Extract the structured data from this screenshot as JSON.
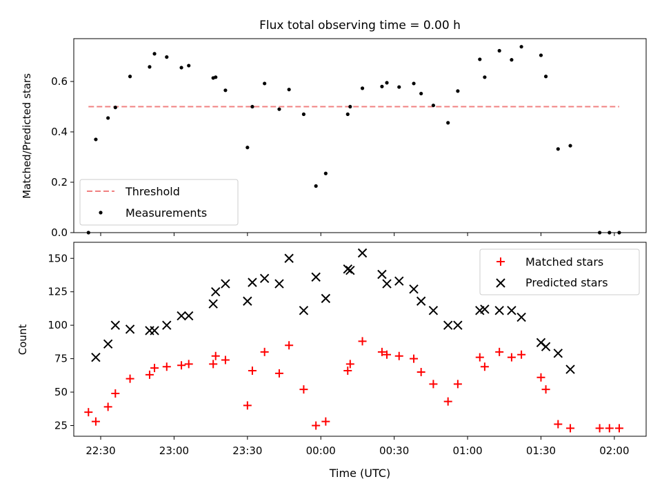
{
  "chart_data": [
    {
      "type": "scatter",
      "title": "Flux total observing time = 0.00 h",
      "xlabel": "",
      "ylabel": "Matched/Predicted stars",
      "ylim": [
        0,
        0.77
      ],
      "xlim": [
        "22:19",
        "02:13"
      ],
      "yticks": [
        "0.0",
        "0.2",
        "0.4",
        "0.6"
      ],
      "grid": false,
      "legend_position": "lower-left",
      "threshold": {
        "name": "Threshold",
        "value": 0.5,
        "x_start": "22:25",
        "x_end": "02:02",
        "color": "#f08080"
      },
      "series": [
        {
          "name": "Measurements",
          "color": "#000000",
          "points": [
            [
              "22:25",
              0.0
            ],
            [
              "22:28",
              0.37
            ],
            [
              "22:33",
              0.455
            ],
            [
              "22:36",
              0.497
            ],
            [
              "22:42",
              0.62
            ],
            [
              "22:50",
              0.658
            ],
            [
              "22:52",
              0.71
            ],
            [
              "22:57",
              0.697
            ],
            [
              "23:03",
              0.655
            ],
            [
              "23:06",
              0.663
            ],
            [
              "23:16",
              0.614
            ],
            [
              "23:17",
              0.617
            ],
            [
              "23:21",
              0.565
            ],
            [
              "23:30",
              0.338
            ],
            [
              "23:32",
              0.5
            ],
            [
              "23:37",
              0.592
            ],
            [
              "23:43",
              0.49
            ],
            [
              "23:47",
              0.568
            ],
            [
              "23:53",
              0.47
            ],
            [
              "23:58",
              0.185
            ],
            [
              "00:02",
              0.235
            ],
            [
              "00:11",
              0.47
            ],
            [
              "00:12",
              0.5
            ],
            [
              "00:17",
              0.573
            ],
            [
              "00:25",
              0.58
            ],
            [
              "00:27",
              0.595
            ],
            [
              "00:32",
              0.578
            ],
            [
              "00:38",
              0.592
            ],
            [
              "00:41",
              0.552
            ],
            [
              "00:46",
              0.505
            ],
            [
              "00:52",
              0.436
            ],
            [
              "00:56",
              0.562
            ],
            [
              "01:05",
              0.688
            ],
            [
              "01:07",
              0.617
            ],
            [
              "01:13",
              0.722
            ],
            [
              "01:18",
              0.686
            ],
            [
              "01:22",
              0.738
            ],
            [
              "01:30",
              0.704
            ],
            [
              "01:32",
              0.62
            ],
            [
              "01:37",
              0.332
            ],
            [
              "01:42",
              0.345
            ],
            [
              "01:54",
              0.0
            ],
            [
              "01:58",
              0.0
            ],
            [
              "02:02",
              0.0
            ]
          ]
        }
      ]
    },
    {
      "type": "scatter",
      "title": "",
      "xlabel": "Time (UTC)",
      "ylabel": "Count",
      "ylim": [
        17,
        162
      ],
      "xlim": [
        "22:19",
        "02:13"
      ],
      "xticks": [
        "22:30",
        "23:00",
        "23:30",
        "00:00",
        "00:30",
        "01:00",
        "01:30",
        "02:00"
      ],
      "yticks": [
        "25",
        "50",
        "75",
        "100",
        "125",
        "150"
      ],
      "grid": false,
      "legend_position": "upper-right",
      "series": [
        {
          "name": "Matched stars",
          "color": "#ff0000",
          "marker": "+",
          "points": [
            [
              "22:25",
              35
            ],
            [
              "22:28",
              28
            ],
            [
              "22:33",
              39
            ],
            [
              "22:36",
              49
            ],
            [
              "22:42",
              60
            ],
            [
              "22:50",
              63
            ],
            [
              "22:52",
              68
            ],
            [
              "22:57",
              69
            ],
            [
              "23:03",
              70
            ],
            [
              "23:06",
              71
            ],
            [
              "23:16",
              71
            ],
            [
              "23:17",
              77
            ],
            [
              "23:21",
              74
            ],
            [
              "23:30",
              40
            ],
            [
              "23:32",
              66
            ],
            [
              "23:37",
              80
            ],
            [
              "23:43",
              64
            ],
            [
              "23:47",
              85
            ],
            [
              "23:53",
              52
            ],
            [
              "23:58",
              25
            ],
            [
              "00:02",
              28
            ],
            [
              "00:11",
              66
            ],
            [
              "00:12",
              71
            ],
            [
              "00:17",
              88
            ],
            [
              "00:25",
              80
            ],
            [
              "00:27",
              78
            ],
            [
              "00:32",
              77
            ],
            [
              "00:38",
              75
            ],
            [
              "00:41",
              65
            ],
            [
              "00:46",
              56
            ],
            [
              "00:52",
              43
            ],
            [
              "00:56",
              56
            ],
            [
              "01:05",
              76
            ],
            [
              "01:07",
              69
            ],
            [
              "01:13",
              80
            ],
            [
              "01:18",
              76
            ],
            [
              "01:22",
              78
            ],
            [
              "01:30",
              61
            ],
            [
              "01:32",
              52
            ],
            [
              "01:37",
              26
            ],
            [
              "01:42",
              23
            ],
            [
              "01:54",
              23
            ],
            [
              "01:58",
              23
            ],
            [
              "02:02",
              23
            ]
          ]
        },
        {
          "name": "Predicted stars",
          "color": "#000000",
          "marker": "x",
          "points": [
            [
              "22:28",
              76
            ],
            [
              "22:33",
              86
            ],
            [
              "22:36",
              100
            ],
            [
              "22:42",
              97
            ],
            [
              "22:50",
              96
            ],
            [
              "22:52",
              96
            ],
            [
              "22:57",
              100
            ],
            [
              "23:03",
              107
            ],
            [
              "23:06",
              107
            ],
            [
              "23:16",
              116
            ],
            [
              "23:17",
              125
            ],
            [
              "23:21",
              131
            ],
            [
              "23:30",
              118
            ],
            [
              "23:32",
              132
            ],
            [
              "23:37",
              135
            ],
            [
              "23:43",
              131
            ],
            [
              "23:47",
              150
            ],
            [
              "23:53",
              111
            ],
            [
              "23:58",
              136
            ],
            [
              "00:02",
              120
            ],
            [
              "00:11",
              142
            ],
            [
              "00:12",
              141
            ],
            [
              "00:17",
              154
            ],
            [
              "00:25",
              138
            ],
            [
              "00:27",
              131
            ],
            [
              "00:32",
              133
            ],
            [
              "00:38",
              127
            ],
            [
              "00:41",
              118
            ],
            [
              "00:46",
              111
            ],
            [
              "00:52",
              100
            ],
            [
              "00:56",
              100
            ],
            [
              "01:05",
              111
            ],
            [
              "01:07",
              112
            ],
            [
              "01:13",
              111
            ],
            [
              "01:18",
              111
            ],
            [
              "01:22",
              106
            ],
            [
              "01:30",
              87
            ],
            [
              "01:32",
              84
            ],
            [
              "01:37",
              79
            ],
            [
              "01:42",
              67
            ]
          ]
        }
      ]
    }
  ]
}
